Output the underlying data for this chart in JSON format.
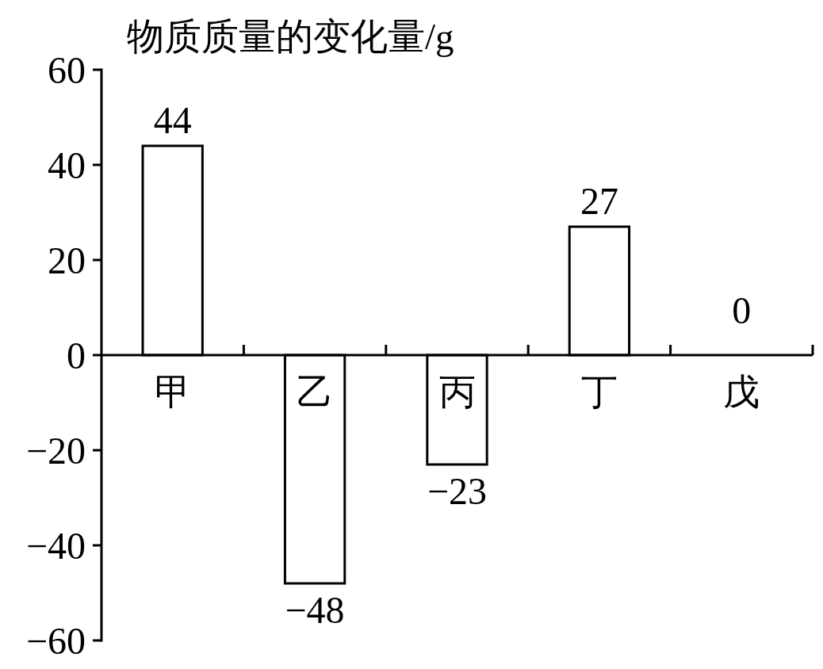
{
  "chart_data": {
    "type": "bar",
    "ylabel": "物质质量的变化量/g",
    "categories": [
      "甲",
      "乙",
      "丙",
      "丁",
      "戊"
    ],
    "values": [
      44,
      -48,
      -23,
      27,
      0
    ],
    "color": "#ffffff",
    "ylim": [
      -60,
      60
    ],
    "yticks": [
      -60,
      -40,
      -20,
      0,
      20,
      40,
      60
    ],
    "data_labels": true
  }
}
